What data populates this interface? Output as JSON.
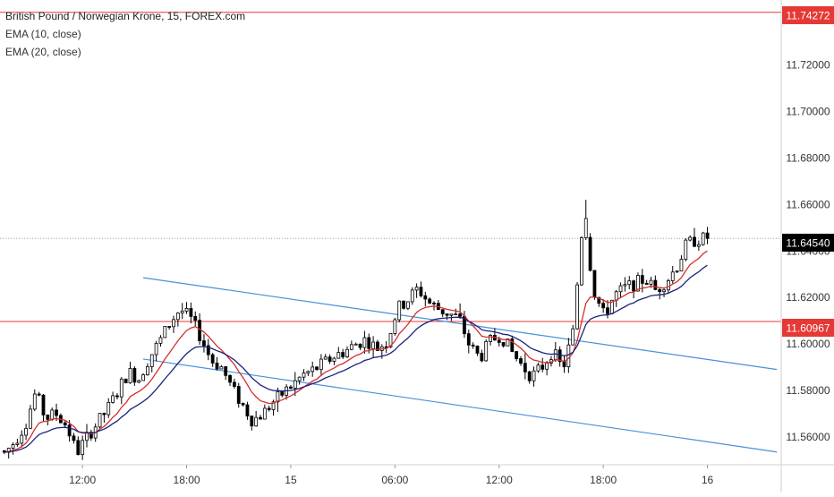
{
  "legend": {
    "title": "British Pound / Norwegian Krone, 15, FOREX.com",
    "ema_10": "EMA (10, close)",
    "ema_20": "EMA (20, close)"
  },
  "price_labels": {
    "resistance": "11.74272",
    "current": "11.64540",
    "support": "11.60967"
  },
  "colors": {
    "up_candle": "#ffffff",
    "down_candle": "#000000",
    "ema_10": "#d32f2f",
    "ema_20": "#1a237e",
    "channel": "#4a90d9",
    "level_line": "#e53935",
    "current_line": "#9e9e9e"
  },
  "chart_data": {
    "type": "candlestick",
    "symbol": "British Pound / Norwegian Krone",
    "interval": "15",
    "source": "FOREX.com",
    "ylim": [
      11.548,
      11.748
    ],
    "y_ticks": [
      "11.72000",
      "11.70000",
      "11.68000",
      "11.66000",
      "11.64000",
      "11.62000",
      "11.60000",
      "11.58000",
      "11.56000"
    ],
    "x_ticks": [
      "12:00",
      "18:00",
      "15",
      "06:00",
      "12:00",
      "18:00",
      "16"
    ],
    "x_tick_times": [
      12,
      18,
      24,
      30,
      36,
      42,
      48
    ],
    "x_range_time": [
      7.25,
      52.25
    ],
    "horizontal_levels": [
      {
        "price": 11.74272,
        "label": "11.74272",
        "kind": "resistance"
      },
      {
        "price": 11.60967,
        "label": "11.60967",
        "kind": "support"
      },
      {
        "price": 11.6454,
        "label": "11.64540",
        "kind": "current"
      }
    ],
    "channel": [
      {
        "t1": 15.5,
        "p1": 11.6285,
        "t2": 52.0,
        "p2": 11.589
      },
      {
        "t1": 15.5,
        "p1": 11.5935,
        "t2": 52.0,
        "p2": 11.5535
      }
    ],
    "candles": [
      [
        11.554,
        11.556,
        11.546,
        11.553
      ],
      [
        11.553,
        11.56,
        11.548,
        11.558
      ],
      [
        11.558,
        11.567,
        11.556,
        11.565
      ],
      [
        11.565,
        11.584,
        11.563,
        11.579
      ],
      [
        11.579,
        11.583,
        11.566,
        11.568
      ],
      [
        11.568,
        11.574,
        11.56,
        11.57
      ],
      [
        11.57,
        11.578,
        11.562,
        11.565
      ],
      [
        11.565,
        11.57,
        11.55,
        11.553
      ],
      [
        11.553,
        11.562,
        11.548,
        11.56
      ],
      [
        11.56,
        11.568,
        11.555,
        11.566
      ],
      [
        11.566,
        11.575,
        11.562,
        11.572
      ],
      [
        11.572,
        11.582,
        11.569,
        11.58
      ],
      [
        11.58,
        11.59,
        11.578,
        11.588
      ],
      [
        11.588,
        11.594,
        11.583,
        11.585
      ],
      [
        11.585,
        11.596,
        11.582,
        11.594
      ],
      [
        11.594,
        11.603,
        11.59,
        11.601
      ],
      [
        11.601,
        11.612,
        11.598,
        11.609
      ],
      [
        11.609,
        11.617,
        11.604,
        11.615
      ],
      [
        11.615,
        11.62,
        11.607,
        11.611
      ],
      [
        11.611,
        11.617,
        11.6,
        11.603
      ],
      [
        11.603,
        11.606,
        11.59,
        11.593
      ],
      [
        11.593,
        11.598,
        11.585,
        11.59
      ],
      [
        11.59,
        11.593,
        11.578,
        11.581
      ],
      [
        11.581,
        11.585,
        11.57,
        11.574
      ],
      [
        11.574,
        11.58,
        11.563,
        11.567
      ],
      [
        11.567,
        11.575,
        11.557,
        11.57
      ],
      [
        11.57,
        11.578,
        11.566,
        11.575
      ],
      [
        11.575,
        11.582,
        11.571,
        11.579
      ],
      [
        11.579,
        11.586,
        11.575,
        11.583
      ],
      [
        11.583,
        11.591,
        11.58,
        11.587
      ],
      [
        11.587,
        11.594,
        11.583,
        11.589
      ],
      [
        11.589,
        11.596,
        11.586,
        11.592
      ],
      [
        11.592,
        11.598,
        11.589,
        11.595
      ],
      [
        11.595,
        11.601,
        11.591,
        11.597
      ],
      [
        11.597,
        11.603,
        11.594,
        11.6
      ],
      [
        11.6,
        11.605,
        11.597,
        11.602
      ],
      [
        11.602,
        11.606,
        11.596,
        11.598
      ],
      [
        11.598,
        11.602,
        11.595,
        11.601
      ],
      [
        11.601,
        11.618,
        11.599,
        11.615
      ],
      [
        11.615,
        11.622,
        11.611,
        11.619
      ],
      [
        11.619,
        11.628,
        11.616,
        11.624
      ],
      [
        11.624,
        11.627,
        11.616,
        11.618
      ],
      [
        11.618,
        11.621,
        11.612,
        11.615
      ],
      [
        11.615,
        11.618,
        11.609,
        11.613
      ],
      [
        11.613,
        11.617,
        11.608,
        11.611
      ],
      [
        11.611,
        11.613,
        11.596,
        11.599
      ],
      [
        11.599,
        11.604,
        11.59,
        11.594
      ],
      [
        11.594,
        11.604,
        11.589,
        11.601
      ],
      [
        11.601,
        11.609,
        11.598,
        11.604
      ],
      [
        11.604,
        11.607,
        11.594,
        11.597
      ],
      [
        11.597,
        11.599,
        11.586,
        11.591
      ],
      [
        11.591,
        11.596,
        11.581,
        11.586
      ],
      [
        11.586,
        11.591,
        11.578,
        11.59
      ],
      [
        11.59,
        11.6,
        11.587,
        11.597
      ],
      [
        11.597,
        11.601,
        11.585,
        11.589
      ],
      [
        11.589,
        11.608,
        11.586,
        11.605
      ],
      [
        11.605,
        11.662,
        11.603,
        11.656
      ],
      [
        11.656,
        11.66,
        11.618,
        11.623
      ],
      [
        11.623,
        11.632,
        11.609,
        11.612
      ],
      [
        11.612,
        11.625,
        11.607,
        11.621
      ],
      [
        11.621,
        11.628,
        11.617,
        11.624
      ],
      [
        11.624,
        11.63,
        11.619,
        11.626
      ],
      [
        11.626,
        11.631,
        11.621,
        11.628
      ],
      [
        11.628,
        11.632,
        11.621,
        11.623
      ],
      [
        11.623,
        11.629,
        11.62,
        11.627
      ],
      [
        11.627,
        11.635,
        11.625,
        11.633
      ],
      [
        11.633,
        11.646,
        11.631,
        11.643
      ],
      [
        11.643,
        11.648,
        11.641,
        11.645
      ],
      [
        11.645,
        11.655,
        11.642,
        11.6454
      ]
    ]
  }
}
